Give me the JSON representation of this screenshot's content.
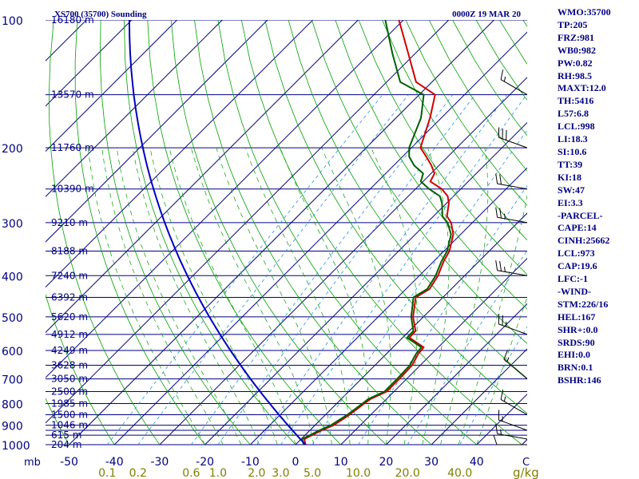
{
  "chart_data": {
    "type": "skew-t",
    "title": "XS700 (35700) Sounding",
    "date": "0000Z 19 MAR 20",
    "pressure_axis_unit": "mb",
    "temperature_axis_unit": "C",
    "mixing_ratio_unit": "g/kg",
    "pressure_ticks": [
      100,
      200,
      300,
      400,
      500,
      600,
      700,
      800,
      900,
      1000
    ],
    "pressure_tick_labels": [
      "100",
      "200",
      "300",
      "400",
      "500",
      "600",
      "700",
      "800",
      "900",
      "1000"
    ],
    "temperature_ticks": [
      -50,
      -40,
      -30,
      -20,
      -10,
      0,
      10,
      20,
      30,
      40
    ],
    "temperature_tick_labels": [
      "-50",
      "-40",
      "-30",
      "-20",
      "-10",
      "0",
      "10",
      "20",
      "30",
      "40"
    ],
    "mixing_ratio_ticks": [
      0.1,
      0.2,
      0.6,
      1.0,
      2.0,
      3.0,
      5.0,
      10.0,
      20.0,
      40.0
    ],
    "mixing_ratio_labels": [
      "0.1",
      "0.2",
      "0.6",
      "1.0",
      "2.0",
      "3.0",
      "5.0",
      "10.0",
      "20.0",
      "40.0"
    ],
    "isobars_mb": [
      100,
      150,
      200,
      250,
      300,
      350,
      400,
      450,
      500,
      550,
      600,
      650,
      700,
      750,
      800,
      850,
      900,
      925,
      950,
      1000
    ],
    "height_labels": [
      {
        "p": 100,
        "text": "16180 m"
      },
      {
        "p": 150,
        "text": "13570 m"
      },
      {
        "p": 200,
        "text": "11760 m"
      },
      {
        "p": 250,
        "text": "10390 m"
      },
      {
        "p": 300,
        "text": "9210 m"
      },
      {
        "p": 350,
        "text": "8188 m"
      },
      {
        "p": 400,
        "text": "7240 m"
      },
      {
        "p": 450,
        "text": "6392 m"
      },
      {
        "p": 500,
        "text": "5620 m"
      },
      {
        "p": 550,
        "text": "4912 m"
      },
      {
        "p": 600,
        "text": "4249 m"
      },
      {
        "p": 650,
        "text": "3628 m"
      },
      {
        "p": 700,
        "text": "3050 m"
      },
      {
        "p": 750,
        "text": "2500 m"
      },
      {
        "p": 800,
        "text": "1985 m"
      },
      {
        "p": 850,
        "text": "1500 m"
      },
      {
        "p": 900,
        "text": "1046 m"
      },
      {
        "p": 950,
        "text": "615 m"
      },
      {
        "p": 1000,
        "text": "204 m"
      }
    ],
    "temperature_profile": [
      {
        "p": 1000,
        "t": 2.2
      },
      {
        "p": 970,
        "t": 0.7
      },
      {
        "p": 925,
        "t": 2.6
      },
      {
        "p": 900,
        "t": 4.1
      },
      {
        "p": 850,
        "t": 5.3
      },
      {
        "p": 800,
        "t": 6.1
      },
      {
        "p": 780,
        "t": 6.5
      },
      {
        "p": 750,
        "t": 8.4
      },
      {
        "p": 700,
        "t": 8.4
      },
      {
        "p": 650,
        "t": 8.2
      },
      {
        "p": 610,
        "t": 7.0
      },
      {
        "p": 590,
        "t": 6.8
      },
      {
        "p": 560,
        "t": 1.5
      },
      {
        "p": 540,
        "t": 1.4
      },
      {
        "p": 500,
        "t": -2.3
      },
      {
        "p": 450,
        "t": -6.0
      },
      {
        "p": 430,
        "t": -4.8
      },
      {
        "p": 400,
        "t": -5.9
      },
      {
        "p": 370,
        "t": -7.8
      },
      {
        "p": 350,
        "t": -8.8
      },
      {
        "p": 320,
        "t": -11.6
      },
      {
        "p": 300,
        "t": -14.7
      },
      {
        "p": 290,
        "t": -17.0
      },
      {
        "p": 270,
        "t": -19.5
      },
      {
        "p": 260,
        "t": -21.3
      },
      {
        "p": 250,
        "t": -24.2
      },
      {
        "p": 240,
        "t": -28.4
      },
      {
        "p": 230,
        "t": -29.2
      },
      {
        "p": 220,
        "t": -31.7
      },
      {
        "p": 210,
        "t": -34.7
      },
      {
        "p": 200,
        "t": -38.0
      },
      {
        "p": 170,
        "t": -42.5
      },
      {
        "p": 150,
        "t": -46.5
      },
      {
        "p": 140,
        "t": -53.5
      },
      {
        "p": 120,
        "t": -61.5
      },
      {
        "p": 100,
        "t": -71.0
      }
    ],
    "dewpoint_profile": [
      {
        "p": 1000,
        "t": 1.8
      },
      {
        "p": 970,
        "t": 0.2
      },
      {
        "p": 925,
        "t": 2.1
      },
      {
        "p": 900,
        "t": 3.5
      },
      {
        "p": 850,
        "t": 4.8
      },
      {
        "p": 800,
        "t": 5.7
      },
      {
        "p": 780,
        "t": 6.0
      },
      {
        "p": 750,
        "t": 7.9
      },
      {
        "p": 700,
        "t": 7.9
      },
      {
        "p": 650,
        "t": 7.7
      },
      {
        "p": 610,
        "t": 6.5
      },
      {
        "p": 590,
        "t": 6.3
      },
      {
        "p": 560,
        "t": 1.0
      },
      {
        "p": 540,
        "t": 0.9
      },
      {
        "p": 500,
        "t": -2.7
      },
      {
        "p": 450,
        "t": -6.5
      },
      {
        "p": 430,
        "t": -5.3
      },
      {
        "p": 400,
        "t": -6.4
      },
      {
        "p": 370,
        "t": -8.3
      },
      {
        "p": 350,
        "t": -9.3
      },
      {
        "p": 320,
        "t": -12.1
      },
      {
        "p": 300,
        "t": -15.5
      },
      {
        "p": 290,
        "t": -18.0
      },
      {
        "p": 270,
        "t": -21.0
      },
      {
        "p": 260,
        "t": -23.0
      },
      {
        "p": 250,
        "t": -27.0
      },
      {
        "p": 240,
        "t": -30.5
      },
      {
        "p": 230,
        "t": -31.7
      },
      {
        "p": 220,
        "t": -35.5
      },
      {
        "p": 210,
        "t": -38.5
      },
      {
        "p": 200,
        "t": -40.5
      },
      {
        "p": 170,
        "t": -44.5
      },
      {
        "p": 150,
        "t": -49.0
      },
      {
        "p": 140,
        "t": -57.0
      },
      {
        "p": 120,
        "t": -65.0
      },
      {
        "p": 100,
        "t": -74.0
      }
    ],
    "wind_barbs": [
      {
        "p": 1000,
        "dir": 270,
        "kt": 10
      },
      {
        "p": 970,
        "dir": 280,
        "kt": 15
      },
      {
        "p": 925,
        "dir": 290,
        "kt": 15
      },
      {
        "p": 850,
        "dir": 300,
        "kt": 15
      },
      {
        "p": 700,
        "dir": 310,
        "kt": 15
      },
      {
        "p": 550,
        "dir": 290,
        "kt": 25
      },
      {
        "p": 400,
        "dir": 280,
        "kt": 25
      },
      {
        "p": 300,
        "dir": 280,
        "kt": 25
      },
      {
        "p": 250,
        "dir": 280,
        "kt": 20
      },
      {
        "p": 200,
        "dir": 290,
        "kt": 30
      },
      {
        "p": 150,
        "dir": 300,
        "kt": 15
      }
    ],
    "colors": {
      "isobar": "#000080",
      "isotherm": "#000080",
      "dry_adiabat": "#00a000",
      "moist_adiabat": "#00a000",
      "mixing_ratio": "#2090e0",
      "parcel": "#0000c0",
      "temperature": "#d00000",
      "dewpoint": "#006000",
      "text": "#000080",
      "mixing_label": "#808000",
      "wind": "#000000"
    }
  },
  "stats": [
    "WMO:35700",
    "TP:205",
    "FRZ:981",
    "WB0:982",
    "PW:0.82",
    "RH:98.5",
    "MAXT:12.0",
    "TH:5416",
    "L57:6.8",
    "LCL:998",
    "LI:18.3",
    "SI:10.6",
    "TT:39",
    "KI:18",
    "SW:47",
    "EI:3.3",
    "-PARCEL-",
    "CAPE:14",
    "CINH:25662",
    "LCL:973",
    "CAP:19.6",
    "LFC:-1",
    "-WIND-",
    "STM:226/16",
    "HEL:167",
    "SHR+:0.0",
    "SRDS:90",
    "EHI:0.0",
    "BRN:0.1",
    "BSHR:146"
  ]
}
